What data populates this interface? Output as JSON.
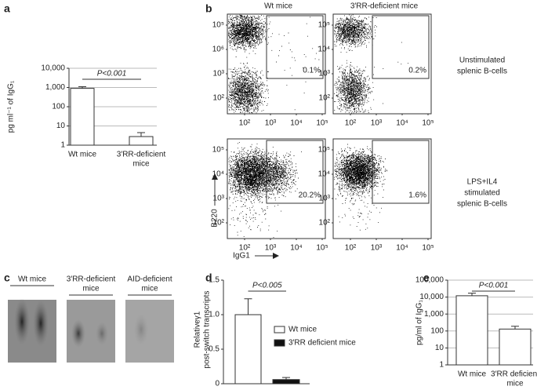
{
  "panel_labels": [
    "a",
    "b",
    "c",
    "d",
    "e"
  ],
  "chart_data": [
    {
      "type": "bar",
      "log_scale": true,
      "grid": true,
      "ylabel": "pg ml⁻¹ of IgG₁",
      "categories": [
        [
          "Wt mice"
        ],
        [
          "3′RR-deficient",
          "mice"
        ]
      ],
      "values": [
        900,
        2.8
      ],
      "errors": [
        200,
        1.7
      ],
      "color": "#ffffff",
      "ylim": [
        1,
        10000
      ],
      "yticks": [
        1,
        10,
        100,
        {
          "value": 1000,
          "label": "1,000"
        },
        {
          "value": 10000,
          "label": "10,000"
        }
      ],
      "annotation": "P<0.001"
    },
    {
      "type": "bar",
      "log_scale": false,
      "grid": false,
      "ylabel": [
        "Relativeγ1",
        "post-switch transcripts"
      ],
      "series": [
        {
          "name": "Wt mice",
          "color": "#ffffff",
          "values": [
            1.0
          ],
          "errors": [
            0.23
          ]
        },
        {
          "name": "3′RR deficient mice",
          "color": "#111111",
          "values": [
            0.06
          ],
          "errors": [
            0.03
          ]
        }
      ],
      "ylim": [
        0,
        1.5
      ],
      "yticks": [
        0,
        0.5,
        {
          "value": 1.0,
          "label": "1.0"
        },
        1.5
      ],
      "annotation": "P<0.005"
    },
    {
      "type": "bar",
      "log_scale": true,
      "grid": true,
      "ylabel": "pg/ml of IgG₁",
      "categories": [
        [
          "Wt mice"
        ],
        [
          "3′RR deficient",
          "mice"
        ]
      ],
      "values": [
        12000,
        130
      ],
      "errors": [
        5000,
        60
      ],
      "color": "#ffffff",
      "ylim": [
        1,
        100000
      ],
      "yticks": [
        1,
        10,
        100,
        {
          "value": 1000,
          "label": "1,000"
        },
        {
          "value": 10000,
          "label": "10,000"
        },
        {
          "value": 100000,
          "label": "100,000"
        }
      ],
      "annotation": "P<0.001"
    }
  ],
  "flow": {
    "column_titles": [
      "Wt mice",
      "3′RR-deficient mice"
    ],
    "row_titles": [
      [
        "Unstimulated",
        "splenic B-cells"
      ],
      [
        "LPS+IL4",
        "stimulated",
        "splenic B-cells"
      ]
    ],
    "ylabel": "B220",
    "xlabel": "IgG1",
    "plots": [
      {
        "yticks": [
          "10⁵",
          "10⁶",
          "10³",
          "10²"
        ],
        "xticks": [
          "10²",
          "10³",
          "10⁴",
          "10⁵"
        ],
        "gate": "0.1%"
      },
      {
        "yticks": [
          "10⁵",
          "10⁴",
          "10³",
          "10²"
        ],
        "xticks": [
          "10²",
          "10³",
          "10⁴",
          "10⁵"
        ],
        "gate": "0.2%"
      },
      {
        "yticks": [
          "10⁵",
          "10⁴",
          "10³",
          "10²"
        ],
        "xticks": [
          "10²",
          "10³",
          "10⁴",
          "10⁵"
        ],
        "gate": "20.2%"
      },
      {
        "yticks": [
          "10⁵",
          "10⁴",
          "10³",
          "10²"
        ],
        "xticks": [
          "10²",
          "10³",
          "10⁴",
          "10⁵"
        ],
        "gate": "1.6%"
      }
    ]
  },
  "blot": {
    "lanes": [
      [
        "Wt mice"
      ],
      [
        "3′RR-deficient",
        "mice"
      ],
      [
        "AID-deficient",
        "mice"
      ]
    ]
  }
}
